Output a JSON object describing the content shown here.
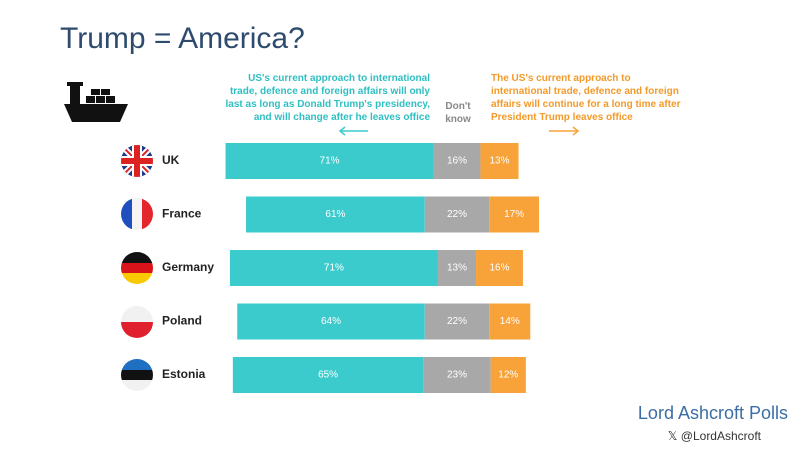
{
  "chart_data": {
    "type": "diverging_stacked_bar",
    "title": "Trump = America?",
    "categories": [
      "UK",
      "France",
      "Germany",
      "Poland",
      "Estonia"
    ],
    "series": [
      {
        "name": "US's current approach to international\ntrade, defence and foreign affairs will only\nlast as long as Donald Trump's presidency,\nand will change after he leaves office",
        "color": "#3ccbcc",
        "values": [
          71,
          61,
          71,
          64,
          65
        ],
        "value_labels": [
          "71%",
          "61%",
          "71%",
          "64%",
          "65%"
        ]
      },
      {
        "name": "Don't\nknow",
        "color": "#a8a8a8",
        "values": [
          16,
          22,
          13,
          22,
          23
        ],
        "value_labels": [
          "16%",
          "22%",
          "13%",
          "22%",
          "23%"
        ]
      },
      {
        "name": "The US's current approach to\ninternational trade, defence and foreign\naffairs will continue for a long time after\nPresident Trump leaves office",
        "color": "#f8a23a",
        "values": [
          13,
          17,
          16,
          14,
          12
        ],
        "value_labels": [
          "13%",
          "17%",
          "16%",
          "14%",
          "12%"
        ]
      }
    ],
    "source": "Lord Ashcroft Polls",
    "handle": "𝕏 @LordAshcroft"
  }
}
